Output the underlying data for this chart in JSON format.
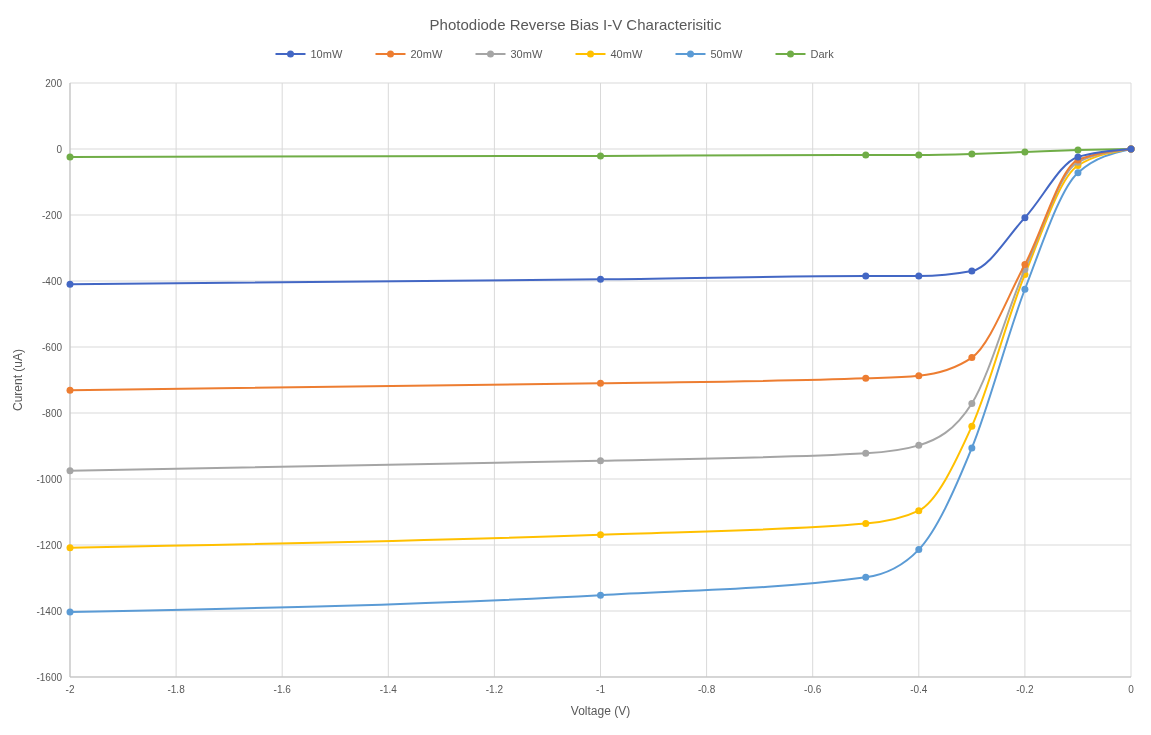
{
  "chart_data": {
    "type": "line",
    "title": "Photodiode Reverse Bias  I-V Characterisitic",
    "xlabel": "Voltage (V)",
    "ylabel": "Curent (uA)",
    "x": [
      -2,
      -1,
      -0.5,
      -0.4,
      -0.3,
      -0.2,
      -0.1,
      0
    ],
    "series": [
      {
        "name": "10mW",
        "color": "#4367c4",
        "values": [
          -410,
          -395,
          -385,
          -385,
          -370,
          -208,
          -24,
          0
        ]
      },
      {
        "name": "20mW",
        "color": "#ed7d31",
        "values": [
          -731,
          -710,
          -695,
          -687,
          -632,
          -350,
          -33,
          0
        ]
      },
      {
        "name": "30mW",
        "color": "#a5a5a5",
        "values": [
          -975,
          -945,
          -922,
          -898,
          -771,
          -365,
          -40,
          0
        ]
      },
      {
        "name": "40mW",
        "color": "#ffc000",
        "values": [
          -1208,
          -1169,
          -1135,
          -1096,
          -840,
          -380,
          -50,
          0
        ]
      },
      {
        "name": "50mW",
        "color": "#5b9bd5",
        "values": [
          -1403,
          -1352,
          -1298,
          -1214,
          -906,
          -425,
          -72,
          0
        ]
      },
      {
        "name": "Dark",
        "color": "#70ad47",
        "values": [
          -24,
          -21,
          -18,
          -18,
          -15,
          -9,
          -3,
          0
        ]
      }
    ],
    "xlim": [
      -2,
      0
    ],
    "xticks": [
      -2,
      -1.8,
      -1.6,
      -1.4,
      -1.2,
      -1,
      -0.8,
      -0.6,
      -0.4,
      -0.2,
      0
    ],
    "ylim": [
      -1600,
      200
    ],
    "yticks": [
      -1600,
      -1400,
      -1200,
      -1000,
      -800,
      -600,
      -400,
      -200,
      0,
      200
    ],
    "grid": true,
    "legend": "top",
    "marker": "circle",
    "line_style": "solid"
  }
}
